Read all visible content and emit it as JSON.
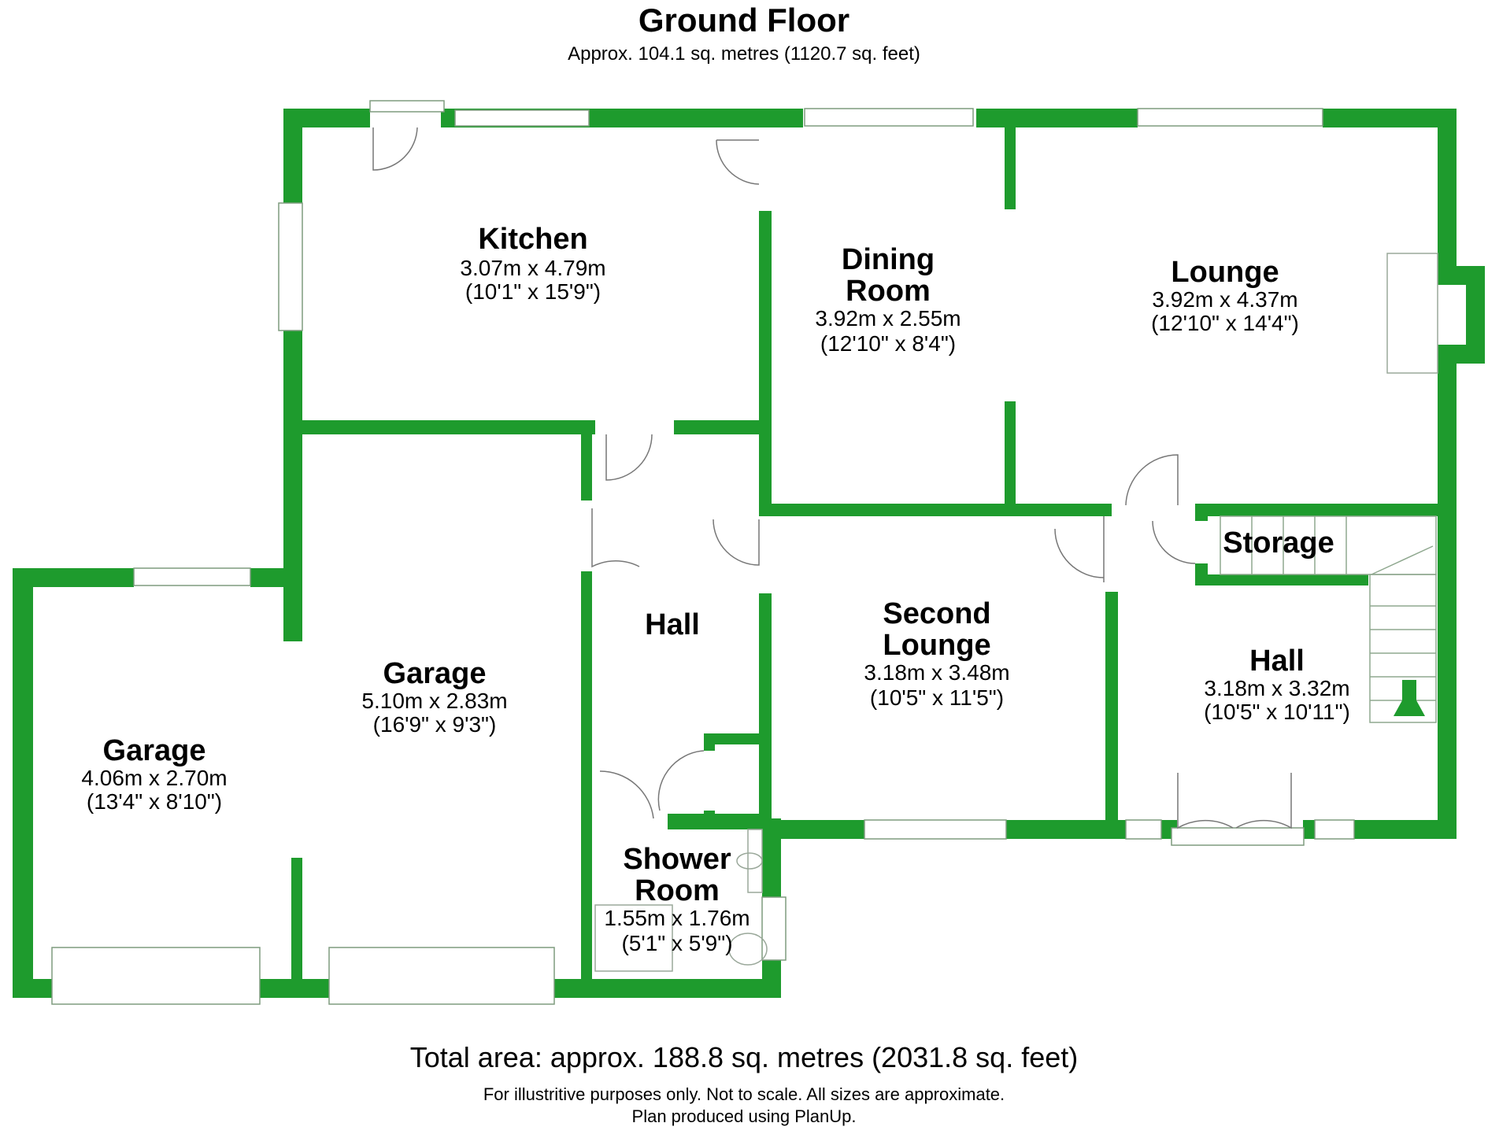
{
  "header": {
    "title": "Ground Floor",
    "subtitle": "Approx. 104.1 sq. metres (1120.7 sq. feet)"
  },
  "rooms": {
    "kitchen": {
      "name": "Kitchen",
      "metric": "3.07m x 4.79m",
      "imperial": "(10'1\" x 15'9\")"
    },
    "dining_room": {
      "name_line1": "Dining",
      "name_line2": "Room",
      "metric": "3.92m x 2.55m",
      "imperial": "(12'10\" x 8'4\")"
    },
    "lounge": {
      "name": "Lounge",
      "metric": "3.92m x 4.37m",
      "imperial": "(12'10\" x 14'4\")"
    },
    "hall_inner": {
      "name": "Hall"
    },
    "storage": {
      "name": "Storage"
    },
    "second_lounge": {
      "name_line1": "Second",
      "name_line2": "Lounge",
      "metric": "3.18m x 3.48m",
      "imperial": "(10'5\" x 11'5\")"
    },
    "hall_front": {
      "name": "Hall",
      "metric": "3.18m x 3.32m",
      "imperial": "(10'5\" x 10'11\")"
    },
    "garage_main": {
      "name": "Garage",
      "metric": "5.10m x 2.83m",
      "imperial": "(16'9\" x 9'3\")"
    },
    "garage_side": {
      "name": "Garage",
      "metric": "4.06m x 2.70m",
      "imperial": "(13'4\" x 8'10\")"
    },
    "shower_room": {
      "name_line1": "Shower",
      "name_line2": "Room",
      "metric": "1.55m x 1.76m",
      "imperial": "(5'1\" x 5'9\")"
    }
  },
  "footer": {
    "total": "Total area: approx. 188.8 sq. metres (2031.8 sq. feet)",
    "note1": "For illustritive purposes only.  Not to scale.  All sizes are approximate.",
    "note2": "Plan produced using PlanUp."
  },
  "colors": {
    "wall": "#1e9b2d",
    "stair_arrow": "#1e9b2d"
  }
}
